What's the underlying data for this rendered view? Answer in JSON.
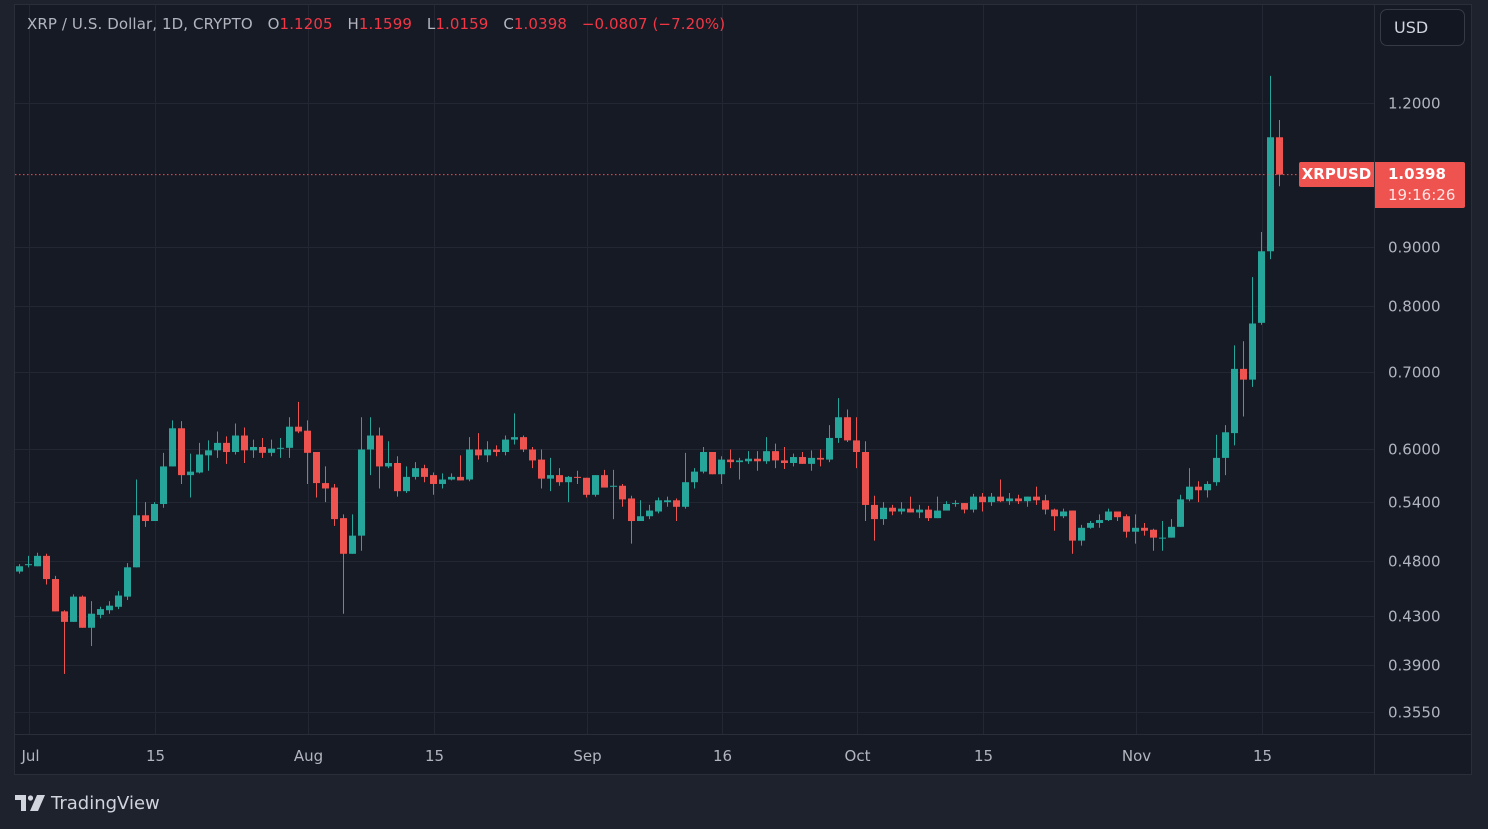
{
  "legend": {
    "symbol_desc": "XRP / U.S. Dollar, 1D, CRYPTO",
    "open_label": "O",
    "open": "1.1205",
    "high_label": "H",
    "high": "1.1599",
    "low_label": "L",
    "low": "1.0159",
    "close_label": "C",
    "close": "1.0398",
    "change": "−0.0807 (−7.20%)"
  },
  "currency_button": "USD",
  "last_price": {
    "symbol": "XRPUSD",
    "price": "1.0398",
    "countdown": "19:16:26"
  },
  "branding": {
    "name": "TradingView"
  },
  "colors": {
    "up": "#26a69a",
    "down": "#ef5350",
    "background": "#161a25",
    "grid": "#232733",
    "text": "#b2b5be"
  },
  "chart_data": {
    "type": "candlestick",
    "scale": "log",
    "grid": true,
    "ylim": [
      0.34,
      1.33
    ],
    "y_ticks": [
      "1.2000",
      "0.9000",
      "0.8000",
      "0.7000",
      "0.6000",
      "0.5400",
      "0.4800",
      "0.4300",
      "0.3900",
      "0.3550"
    ],
    "x_ticks": [
      {
        "label": "Jul",
        "date": "Jul 1"
      },
      {
        "label": "15",
        "date": "Jul 15"
      },
      {
        "label": "Aug",
        "date": "Aug 1"
      },
      {
        "label": "15",
        "date": "Aug 15"
      },
      {
        "label": "Sep",
        "date": "Sep 1"
      },
      {
        "label": "16",
        "date": "Sep 16"
      },
      {
        "label": "Oct",
        "date": "Oct 1"
      },
      {
        "label": "15",
        "date": "Oct 15"
      },
      {
        "label": "Nov",
        "date": "Nov 1"
      },
      {
        "label": "15",
        "date": "Nov 15"
      }
    ],
    "dates": [
      "Jun 30",
      "Jul 1",
      "Jul 2",
      "Jul 3",
      "Jul 4",
      "Jul 5",
      "Jul 6",
      "Jul 7",
      "Jul 8",
      "Jul 9",
      "Jul 10",
      "Jul 11",
      "Jul 12",
      "Jul 13",
      "Jul 14",
      "Jul 15",
      "Jul 16",
      "Jul 17",
      "Jul 18",
      "Jul 19",
      "Jul 20",
      "Jul 21",
      "Jul 22",
      "Jul 23",
      "Jul 24",
      "Jul 25",
      "Jul 26",
      "Jul 27",
      "Jul 28",
      "Jul 29",
      "Jul 30",
      "Jul 31",
      "Aug 1",
      "Aug 2",
      "Aug 3",
      "Aug 4",
      "Aug 5",
      "Aug 6",
      "Aug 7",
      "Aug 8",
      "Aug 9",
      "Aug 10",
      "Aug 11",
      "Aug 12",
      "Aug 13",
      "Aug 14",
      "Aug 15",
      "Aug 16",
      "Aug 17",
      "Aug 18",
      "Aug 19",
      "Aug 20",
      "Aug 21",
      "Aug 22",
      "Aug 23",
      "Aug 24",
      "Aug 25",
      "Aug 26",
      "Aug 27",
      "Aug 28",
      "Aug 29",
      "Aug 30",
      "Aug 31",
      "Sep 1",
      "Sep 2",
      "Sep 3",
      "Sep 4",
      "Sep 5",
      "Sep 6",
      "Sep 7",
      "Sep 8",
      "Sep 9",
      "Sep 10",
      "Sep 11",
      "Sep 12",
      "Sep 13",
      "Sep 14",
      "Sep 15",
      "Sep 16",
      "Sep 17",
      "Sep 18",
      "Sep 19",
      "Sep 20",
      "Sep 21",
      "Sep 22",
      "Sep 23",
      "Sep 24",
      "Sep 25",
      "Sep 26",
      "Sep 27",
      "Sep 28",
      "Sep 29",
      "Sep 30",
      "Oct 1",
      "Oct 2",
      "Oct 3",
      "Oct 4",
      "Oct 5",
      "Oct 6",
      "Oct 7",
      "Oct 8",
      "Oct 9",
      "Oct 10",
      "Oct 11",
      "Oct 12",
      "Oct 13",
      "Oct 14",
      "Oct 15",
      "Oct 16",
      "Oct 17",
      "Oct 18",
      "Oct 19",
      "Oct 20",
      "Oct 21",
      "Oct 22",
      "Oct 23",
      "Oct 24",
      "Oct 25",
      "Oct 26",
      "Oct 27",
      "Oct 28",
      "Oct 29",
      "Oct 30",
      "Oct 31",
      "Nov 1",
      "Nov 2",
      "Nov 3",
      "Nov 4",
      "Nov 5",
      "Nov 6",
      "Nov 7",
      "Nov 8",
      "Nov 9",
      "Nov 10",
      "Nov 11",
      "Nov 12",
      "Nov 13",
      "Nov 14",
      "Nov 15",
      "Nov 16",
      "Nov 17"
    ],
    "ohlc": [
      [
        0.47,
        0.477,
        0.468,
        0.475
      ],
      [
        0.476,
        0.485,
        0.474,
        0.477
      ],
      [
        0.475,
        0.488,
        0.475,
        0.485
      ],
      [
        0.485,
        0.487,
        0.458,
        0.463
      ],
      [
        0.463,
        0.466,
        0.434,
        0.434
      ],
      [
        0.434,
        0.435,
        0.383,
        0.425
      ],
      [
        0.425,
        0.449,
        0.425,
        0.447
      ],
      [
        0.447,
        0.448,
        0.42,
        0.42
      ],
      [
        0.42,
        0.443,
        0.405,
        0.432
      ],
      [
        0.431,
        0.438,
        0.428,
        0.436
      ],
      [
        0.435,
        0.443,
        0.432,
        0.439
      ],
      [
        0.438,
        0.452,
        0.436,
        0.448
      ],
      [
        0.447,
        0.478,
        0.444,
        0.474
      ],
      [
        0.474,
        0.565,
        0.474,
        0.526
      ],
      [
        0.526,
        0.54,
        0.514,
        0.52
      ],
      [
        0.52,
        0.54,
        0.52,
        0.538
      ],
      [
        0.538,
        0.596,
        0.534,
        0.58
      ],
      [
        0.58,
        0.636,
        0.58,
        0.626
      ],
      [
        0.626,
        0.635,
        0.56,
        0.57
      ],
      [
        0.57,
        0.595,
        0.545,
        0.574
      ],
      [
        0.573,
        0.608,
        0.572,
        0.594
      ],
      [
        0.593,
        0.611,
        0.575,
        0.599
      ],
      [
        0.599,
        0.622,
        0.59,
        0.608
      ],
      [
        0.608,
        0.616,
        0.583,
        0.597
      ],
      [
        0.597,
        0.632,
        0.594,
        0.617
      ],
      [
        0.617,
        0.627,
        0.584,
        0.599
      ],
      [
        0.599,
        0.612,
        0.59,
        0.603
      ],
      [
        0.603,
        0.614,
        0.59,
        0.596
      ],
      [
        0.596,
        0.612,
        0.592,
        0.601
      ],
      [
        0.601,
        0.614,
        0.59,
        0.602
      ],
      [
        0.602,
        0.64,
        0.59,
        0.628
      ],
      [
        0.628,
        0.66,
        0.62,
        0.622
      ],
      [
        0.623,
        0.636,
        0.56,
        0.596
      ],
      [
        0.597,
        0.597,
        0.545,
        0.561
      ],
      [
        0.561,
        0.58,
        0.54,
        0.555
      ],
      [
        0.556,
        0.56,
        0.515,
        0.522
      ],
      [
        0.523,
        0.527,
        0.432,
        0.487
      ],
      [
        0.487,
        0.527,
        0.487,
        0.505
      ],
      [
        0.505,
        0.64,
        0.49,
        0.6
      ],
      [
        0.6,
        0.64,
        0.57,
        0.617
      ],
      [
        0.617,
        0.627,
        0.555,
        0.58
      ],
      [
        0.58,
        0.61,
        0.578,
        0.584
      ],
      [
        0.584,
        0.592,
        0.546,
        0.552
      ],
      [
        0.552,
        0.58,
        0.55,
        0.568
      ],
      [
        0.568,
        0.585,
        0.565,
        0.578
      ],
      [
        0.578,
        0.582,
        0.562,
        0.568
      ],
      [
        0.57,
        0.573,
        0.548,
        0.56
      ],
      [
        0.56,
        0.572,
        0.555,
        0.565
      ],
      [
        0.565,
        0.572,
        0.564,
        0.568
      ],
      [
        0.568,
        0.593,
        0.564,
        0.564
      ],
      [
        0.565,
        0.615,
        0.563,
        0.6
      ],
      [
        0.6,
        0.62,
        0.588,
        0.593
      ],
      [
        0.593,
        0.61,
        0.585,
        0.6
      ],
      [
        0.6,
        0.605,
        0.592,
        0.597
      ],
      [
        0.597,
        0.617,
        0.593,
        0.612
      ],
      [
        0.612,
        0.645,
        0.606,
        0.615
      ],
      [
        0.615,
        0.617,
        0.597,
        0.6
      ],
      [
        0.6,
        0.603,
        0.578,
        0.587
      ],
      [
        0.588,
        0.6,
        0.555,
        0.566
      ],
      [
        0.566,
        0.59,
        0.552,
        0.57
      ],
      [
        0.57,
        0.578,
        0.558,
        0.562
      ],
      [
        0.562,
        0.569,
        0.54,
        0.568
      ],
      [
        0.568,
        0.575,
        0.56,
        0.567
      ],
      [
        0.567,
        0.567,
        0.545,
        0.548
      ],
      [
        0.548,
        0.57,
        0.546,
        0.57
      ],
      [
        0.57,
        0.576,
        0.556,
        0.556
      ],
      [
        0.557,
        0.576,
        0.522,
        0.558
      ],
      [
        0.558,
        0.56,
        0.535,
        0.543
      ],
      [
        0.544,
        0.547,
        0.497,
        0.52
      ],
      [
        0.52,
        0.542,
        0.52,
        0.525
      ],
      [
        0.525,
        0.537,
        0.522,
        0.531
      ],
      [
        0.53,
        0.545,
        0.528,
        0.542
      ],
      [
        0.54,
        0.546,
        0.535,
        0.542
      ],
      [
        0.542,
        0.544,
        0.52,
        0.535
      ],
      [
        0.535,
        0.596,
        0.533,
        0.562
      ],
      [
        0.562,
        0.578,
        0.555,
        0.574
      ],
      [
        0.574,
        0.603,
        0.572,
        0.597
      ],
      [
        0.597,
        0.597,
        0.571,
        0.571
      ],
      [
        0.571,
        0.592,
        0.56,
        0.588
      ],
      [
        0.588,
        0.6,
        0.578,
        0.585
      ],
      [
        0.585,
        0.59,
        0.565,
        0.587
      ],
      [
        0.586,
        0.598,
        0.583,
        0.589
      ],
      [
        0.589,
        0.598,
        0.575,
        0.586
      ],
      [
        0.586,
        0.615,
        0.583,
        0.598
      ],
      [
        0.598,
        0.607,
        0.578,
        0.587
      ],
      [
        0.587,
        0.603,
        0.577,
        0.584
      ],
      [
        0.584,
        0.595,
        0.58,
        0.591
      ],
      [
        0.591,
        0.597,
        0.583,
        0.583
      ],
      [
        0.583,
        0.599,
        0.575,
        0.59
      ],
      [
        0.59,
        0.6,
        0.58,
        0.588
      ],
      [
        0.588,
        0.63,
        0.585,
        0.614
      ],
      [
        0.614,
        0.665,
        0.608,
        0.64
      ],
      [
        0.64,
        0.65,
        0.609,
        0.611
      ],
      [
        0.611,
        0.64,
        0.578,
        0.597
      ],
      [
        0.597,
        0.61,
        0.52,
        0.537
      ],
      [
        0.537,
        0.547,
        0.5,
        0.522
      ],
      [
        0.522,
        0.54,
        0.516,
        0.534
      ],
      [
        0.534,
        0.537,
        0.526,
        0.53
      ],
      [
        0.53,
        0.54,
        0.527,
        0.533
      ],
      [
        0.533,
        0.546,
        0.529,
        0.529
      ],
      [
        0.529,
        0.537,
        0.523,
        0.532
      ],
      [
        0.532,
        0.536,
        0.52,
        0.523
      ],
      [
        0.523,
        0.546,
        0.523,
        0.531
      ],
      [
        0.531,
        0.541,
        0.531,
        0.538
      ],
      [
        0.538,
        0.542,
        0.535,
        0.539
      ],
      [
        0.539,
        0.539,
        0.528,
        0.532
      ],
      [
        0.532,
        0.549,
        0.529,
        0.546
      ],
      [
        0.546,
        0.55,
        0.53,
        0.54
      ],
      [
        0.54,
        0.55,
        0.536,
        0.546
      ],
      [
        0.546,
        0.565,
        0.54,
        0.541
      ],
      [
        0.541,
        0.55,
        0.537,
        0.544
      ],
      [
        0.544,
        0.548,
        0.538,
        0.541
      ],
      [
        0.541,
        0.546,
        0.535,
        0.546
      ],
      [
        0.546,
        0.557,
        0.537,
        0.542
      ],
      [
        0.542,
        0.548,
        0.527,
        0.532
      ],
      [
        0.532,
        0.533,
        0.51,
        0.525
      ],
      [
        0.525,
        0.533,
        0.523,
        0.53
      ],
      [
        0.531,
        0.531,
        0.487,
        0.5
      ],
      [
        0.5,
        0.516,
        0.495,
        0.513
      ],
      [
        0.513,
        0.52,
        0.512,
        0.518
      ],
      [
        0.518,
        0.527,
        0.513,
        0.521
      ],
      [
        0.521,
        0.533,
        0.52,
        0.53
      ],
      [
        0.53,
        0.53,
        0.52,
        0.524
      ],
      [
        0.525,
        0.527,
        0.503,
        0.509
      ],
      [
        0.509,
        0.527,
        0.497,
        0.513
      ],
      [
        0.513,
        0.518,
        0.505,
        0.51
      ],
      [
        0.511,
        0.512,
        0.49,
        0.503
      ],
      [
        0.502,
        0.52,
        0.49,
        0.503
      ],
      [
        0.503,
        0.522,
        0.503,
        0.514
      ],
      [
        0.514,
        0.548,
        0.514,
        0.543
      ],
      [
        0.543,
        0.578,
        0.541,
        0.557
      ],
      [
        0.557,
        0.563,
        0.54,
        0.553
      ],
      [
        0.553,
        0.563,
        0.545,
        0.56
      ],
      [
        0.562,
        0.618,
        0.558,
        0.59
      ],
      [
        0.59,
        0.63,
        0.57,
        0.621
      ],
      [
        0.62,
        0.739,
        0.605,
        0.705
      ],
      [
        0.705,
        0.745,
        0.641,
        0.69
      ],
      [
        0.69,
        0.847,
        0.68,
        0.772
      ],
      [
        0.773,
        0.927,
        0.77,
        0.892
      ],
      [
        0.892,
        1.267,
        0.878,
        1.1205
      ],
      [
        1.1205,
        1.1599,
        1.0159,
        1.0398
      ]
    ]
  }
}
